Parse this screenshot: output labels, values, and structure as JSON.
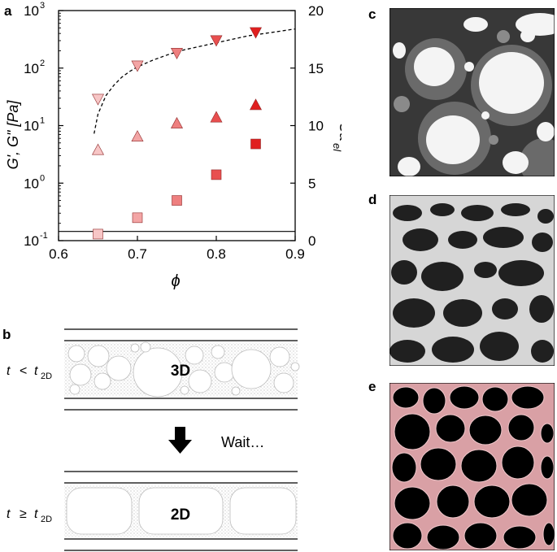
{
  "panel_labels": {
    "a": "a",
    "b": "b",
    "c": "c",
    "d": "d",
    "e": "e"
  },
  "chart_data": {
    "type": "scatter",
    "xlabel": "ϕ",
    "ylabel_left": "G', G\" [Pa]",
    "ylabel_right": "Ca",
    "ylabel_right_sub": "el",
    "x_ticks": [
      "0.6",
      "0.7",
      "0.8",
      "0.9"
    ],
    "x_tick_values": [
      0.6,
      0.7,
      0.8,
      0.9
    ],
    "xlim": [
      0.6,
      0.9
    ],
    "ylim_left_log10": [
      -1,
      3
    ],
    "y_left_ticks": [
      {
        "base": "10",
        "exp": "3",
        "value": 1000
      },
      {
        "base": "10",
        "exp": "2",
        "value": 100
      },
      {
        "base": "10",
        "exp": "1",
        "value": 10
      },
      {
        "base": "10",
        "exp": "0",
        "value": 1
      },
      {
        "base": "10",
        "exp": "-1",
        "value": 0.1
      }
    ],
    "ylim_right": [
      0,
      20
    ],
    "y_right_ticks": [
      "0",
      "5",
      "10",
      "15",
      "20"
    ],
    "y_right_tick_values": [
      0,
      5,
      10,
      15,
      20
    ],
    "horizontal_line_right_value": 0.8,
    "series": [
      {
        "marker": "triangle-down",
        "axis": "right",
        "x": [
          0.65,
          0.7,
          0.75,
          0.8,
          0.85
        ],
        "y": [
          12.3,
          15.2,
          16.3,
          17.4,
          18.1
        ]
      },
      {
        "marker": "triangle-up",
        "axis": "left",
        "x": [
          0.65,
          0.7,
          0.75,
          0.8,
          0.85
        ],
        "y": [
          3.8,
          6.5,
          11,
          14,
          23
        ]
      },
      {
        "marker": "square",
        "axis": "left",
        "x": [
          0.65,
          0.7,
          0.75,
          0.8,
          0.85
        ],
        "y": [
          0.13,
          0.25,
          0.5,
          1.4,
          4.8
        ]
      }
    ],
    "fit_curve": {
      "axis": "right",
      "x": [
        0.645,
        0.65,
        0.66,
        0.67,
        0.68,
        0.69,
        0.7,
        0.72,
        0.74,
        0.76,
        0.78,
        0.8,
        0.82,
        0.84,
        0.86,
        0.88,
        0.9
      ],
      "y": [
        9.3,
        11.0,
        12.6,
        13.5,
        14.2,
        14.7,
        15.1,
        15.7,
        16.2,
        16.6,
        16.9,
        17.2,
        17.5,
        17.8,
        18.0,
        18.2,
        18.4
      ]
    },
    "point_colors": [
      "#f7c6c6",
      "#f3a5a5",
      "#ee7f7f",
      "#e84f4f",
      "#e01f1f"
    ]
  },
  "schematic": {
    "label_3d": "3D",
    "label_2d": "2D",
    "wait_label": "Wait…",
    "cond_top_t": "t",
    "cond_top_op": "<",
    "cond_top_sub": "2D",
    "cond_bottom_t": "t",
    "cond_bottom_op": "≥",
    "cond_bottom_sub": "2D"
  }
}
